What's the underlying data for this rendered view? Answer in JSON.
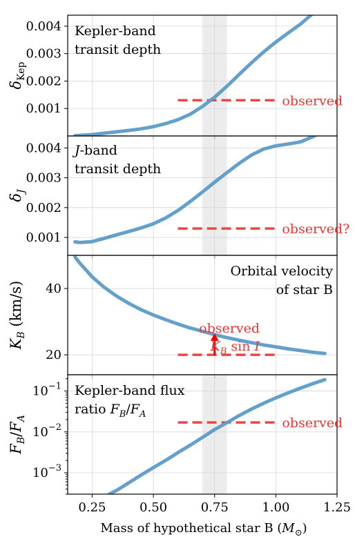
{
  "chart_data": [
    {
      "type": "line",
      "text_lines": [
        "Kepler-band",
        "transit depth"
      ],
      "ylabel_main": "δ",
      "ylabel_sub": "Kep",
      "xlim": [
        0.15,
        1.25
      ],
      "ylim": [
        0.0,
        0.0044
      ],
      "yticks": [
        0.001,
        0.002,
        0.003,
        0.004
      ],
      "ytick_labels": [
        "0.001",
        "0.002",
        "0.003",
        "0.004"
      ],
      "x": [
        0.18,
        0.25,
        0.3,
        0.35,
        0.4,
        0.45,
        0.5,
        0.55,
        0.6,
        0.65,
        0.7,
        0.75,
        0.8,
        0.85,
        0.9,
        0.95,
        1.0,
        1.05,
        1.1,
        1.15
      ],
      "y": [
        1e-05,
        5e-05,
        0.0001,
        0.00015,
        0.0002,
        0.00026,
        0.00034,
        0.00045,
        0.00059,
        0.00079,
        0.00107,
        0.00141,
        0.00181,
        0.00224,
        0.00266,
        0.00306,
        0.00342,
        0.00375,
        0.00407,
        0.00445
      ],
      "observed": {
        "x": [
          0.6,
          1.0
        ],
        "y": 0.0013,
        "label": "observed"
      },
      "shaded_x": [
        0.7,
        0.8
      ]
    },
    {
      "type": "line",
      "text_lines": [
        "-band",
        "transit depth"
      ],
      "text_italic": "J",
      "ylabel_main": "δ",
      "ylabel_sub": "J",
      "xlim": [
        0.15,
        1.25
      ],
      "ylim": [
        0.0004,
        0.0044
      ],
      "yticks": [
        0.001,
        0.002,
        0.003,
        0.004
      ],
      "ytick_labels": [
        "0.001",
        "0.002",
        "0.003",
        "0.004"
      ],
      "x": [
        0.18,
        0.2,
        0.25,
        0.3,
        0.35,
        0.4,
        0.45,
        0.5,
        0.55,
        0.6,
        0.65,
        0.7,
        0.75,
        0.8,
        0.85,
        0.9,
        0.95,
        1.0,
        1.05,
        1.1,
        1.15,
        1.18
      ],
      "y": [
        0.00085,
        0.00083,
        0.00086,
        0.00097,
        0.00109,
        0.0012,
        0.00132,
        0.00146,
        0.00165,
        0.0019,
        0.0022,
        0.00252,
        0.00285,
        0.00317,
        0.00348,
        0.00376,
        0.00396,
        0.00407,
        0.00413,
        0.0042,
        0.00437,
        0.0045
      ],
      "observed": {
        "x": [
          0.6,
          1.0
        ],
        "y": 0.0013,
        "label": "observed?"
      },
      "shaded_x": [
        0.7,
        0.8
      ]
    },
    {
      "type": "line",
      "text_lines": [
        "Orbital velocity",
        "of star B"
      ],
      "ylabel_main": "K",
      "ylabel_sub": "B",
      "ylabel_unit": " (km/s)",
      "xlim": [
        0.15,
        1.25
      ],
      "ylim": [
        14,
        50
      ],
      "yticks": [
        20,
        40
      ],
      "ytick_labels": [
        "20",
        "40"
      ],
      "x": [
        0.18,
        0.2,
        0.25,
        0.3,
        0.35,
        0.4,
        0.45,
        0.5,
        0.55,
        0.6,
        0.65,
        0.7,
        0.75,
        0.8,
        0.85,
        0.9,
        0.95,
        1.0,
        1.05,
        1.1,
        1.15,
        1.2
      ],
      "y": [
        49.5,
        47.6,
        43.5,
        40.3,
        37.7,
        35.5,
        33.6,
        32.0,
        30.6,
        29.3,
        28.1,
        27.1,
        26.1,
        25.2,
        24.4,
        23.7,
        23.0,
        22.4,
        21.8,
        21.3,
        20.8,
        20.4
      ],
      "observed": {
        "x": [
          0.6,
          1.0
        ],
        "y": 20,
        "label": "observed"
      },
      "observed_label2_main": "K",
      "observed_label2_sub": "B",
      "observed_label2_rest": " sin ",
      "observed_label2_italic": "I",
      "arrow": {
        "x": 0.75,
        "y_from": 20,
        "y_to": 26.5
      }
    },
    {
      "type": "line",
      "text_lines": [
        "Kepler-band flux",
        "ratio "
      ],
      "ratio_F": "F",
      "ratio_sub_B": "B",
      "ratio_slash": "/",
      "ratio_sub_A": "A",
      "ylabel_main": "F",
      "ylabel_sub_B": "B",
      "ylabel_slash": "/",
      "ylabel_sub_A": "A",
      "ylog": true,
      "xlim": [
        0.15,
        1.25
      ],
      "ylim": [
        0.0003,
        0.25
      ],
      "yticks": [
        0.001,
        0.01,
        0.1
      ],
      "ytick_base": "10",
      "ytick_exps": [
        "−3",
        "−2",
        "−1"
      ],
      "x": [
        0.32,
        0.35,
        0.4,
        0.45,
        0.5,
        0.55,
        0.6,
        0.65,
        0.7,
        0.75,
        0.8,
        0.85,
        0.9,
        0.95,
        1.0,
        1.05,
        1.1,
        1.15,
        1.2
      ],
      "y": [
        0.0003,
        0.00037,
        0.00057,
        0.00088,
        0.00134,
        0.002,
        0.0031,
        0.0047,
        0.0073,
        0.0114,
        0.0168,
        0.025,
        0.036,
        0.05,
        0.068,
        0.09,
        0.117,
        0.15,
        0.19
      ],
      "observed": {
        "x": [
          0.6,
          1.0
        ],
        "y": 0.017,
        "label": "observed"
      },
      "shaded_x": [
        0.7,
        0.8
      ]
    }
  ],
  "xaxis": {
    "xticks": [
      0.25,
      0.5,
      0.75,
      1.0,
      1.25
    ],
    "xtick_labels": [
      "0.25",
      "0.50",
      "0.75",
      "1.00",
      "1.25"
    ],
    "xlabel_text": "Mass of hypothetical star B (",
    "xlabel_italic": "M",
    "xlabel_symbol": "⊙",
    "xlabel_close": ")"
  },
  "colors": {
    "curve": "#5b9bc8",
    "observed": "#ee3333",
    "band": "#cccccc"
  }
}
